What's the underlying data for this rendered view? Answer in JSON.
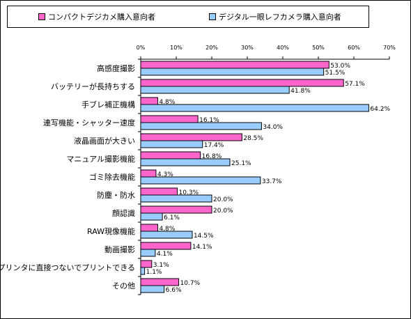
{
  "legend": {
    "compact": "コンパクトデジカメ購入意向者",
    "dslr": "デジタル一眼レフカメラ購入意向者"
  },
  "colors": {
    "compact": "#ff66cc",
    "dslr": "#99ccff",
    "stroke": "#000000"
  },
  "chart_data": {
    "type": "bar",
    "orientation": "horizontal",
    "xlim": [
      0,
      70
    ],
    "ticks": [
      0,
      10,
      20,
      30,
      40,
      50,
      60,
      70
    ],
    "tick_labels": [
      "0%",
      "10%",
      "20%",
      "30%",
      "40%",
      "50%",
      "60%",
      "70%"
    ],
    "grid": false,
    "legend_position": "top",
    "value_suffix": "%",
    "categories": [
      "高感度撮影",
      "バッテリーが長持ちする",
      "手ブレ補正機構",
      "連写機能・シャッター速度",
      "液晶画面が大きい",
      "マニュアル撮影機能",
      "ゴミ除去機能",
      "防塵・防水",
      "顔認識",
      "RAW現像機能",
      "動画撮影",
      "プリンタに直接つないでプリントできる",
      "その他"
    ],
    "series": [
      {
        "name": "コンパクトデジカメ購入意向者",
        "values": [
          53.0,
          57.1,
          4.8,
          16.1,
          28.5,
          16.8,
          4.3,
          10.3,
          20.0,
          4.8,
          14.1,
          3.1,
          10.7
        ]
      },
      {
        "name": "デジタル一眼レフカメラ購入意向者",
        "values": [
          51.5,
          41.8,
          64.2,
          34.0,
          17.4,
          25.1,
          33.7,
          20.0,
          6.1,
          14.5,
          4.1,
          1.1,
          6.6
        ]
      }
    ]
  }
}
